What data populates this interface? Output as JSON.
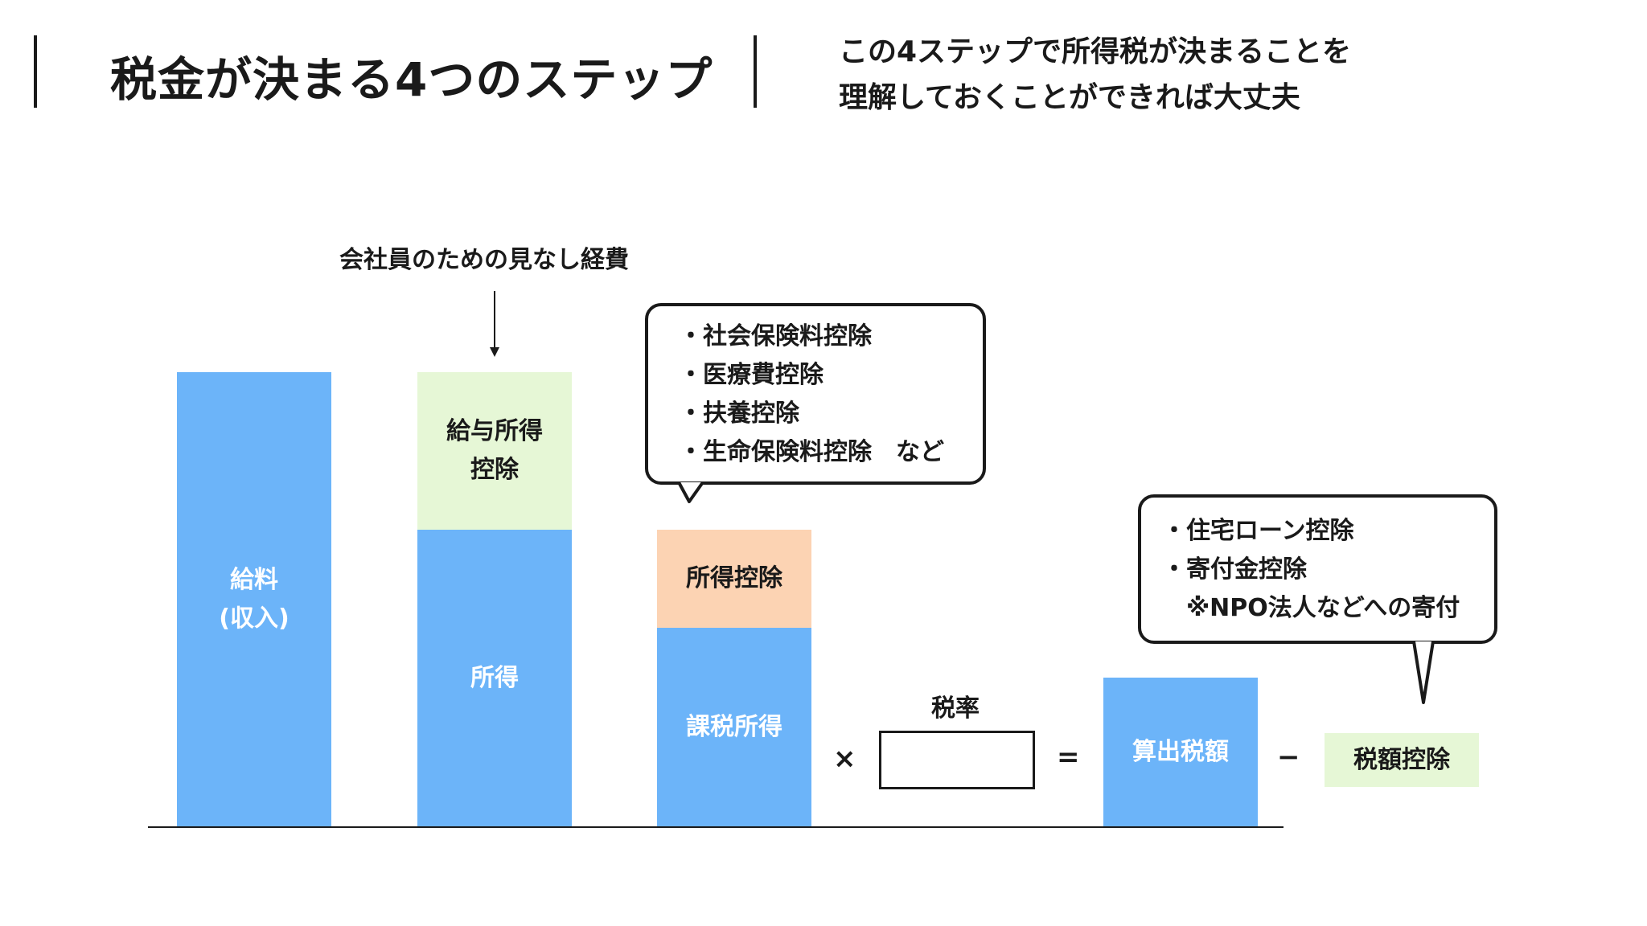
{
  "header": {
    "title": "税金が決まる4つのステップ",
    "subtitle_line1": "この4ステップで所得税が決まることを",
    "subtitle_line2": "理解しておくことができれば大丈夫"
  },
  "diagram": {
    "annotation": "会社員のための見なし経費",
    "salary_line1": "給料",
    "salary_line2": "(収入)",
    "salary_deduction_line1": "給与所得",
    "salary_deduction_line2": "控除",
    "income": "所得",
    "income_deduction": "所得控除",
    "taxable_income": "課税所得",
    "tax_rate_label": "税率",
    "computed_tax": "算出税額",
    "tax_credit": "税額控除",
    "op_multiply": "×",
    "op_equals": "=",
    "op_minus": "−",
    "income_deduction_bubble": [
      "・社会保険料控除",
      "・医療費控除",
      "・扶養控除",
      "・生命保険料控除　など"
    ],
    "tax_credit_bubble": [
      "・住宅ローン控除",
      "・寄付金控除",
      "　※NPO法人などへの寄付"
    ]
  },
  "colors": {
    "blue": "#6cb4f9",
    "green": "#e6f7d6",
    "peach": "#fcd3b3"
  }
}
